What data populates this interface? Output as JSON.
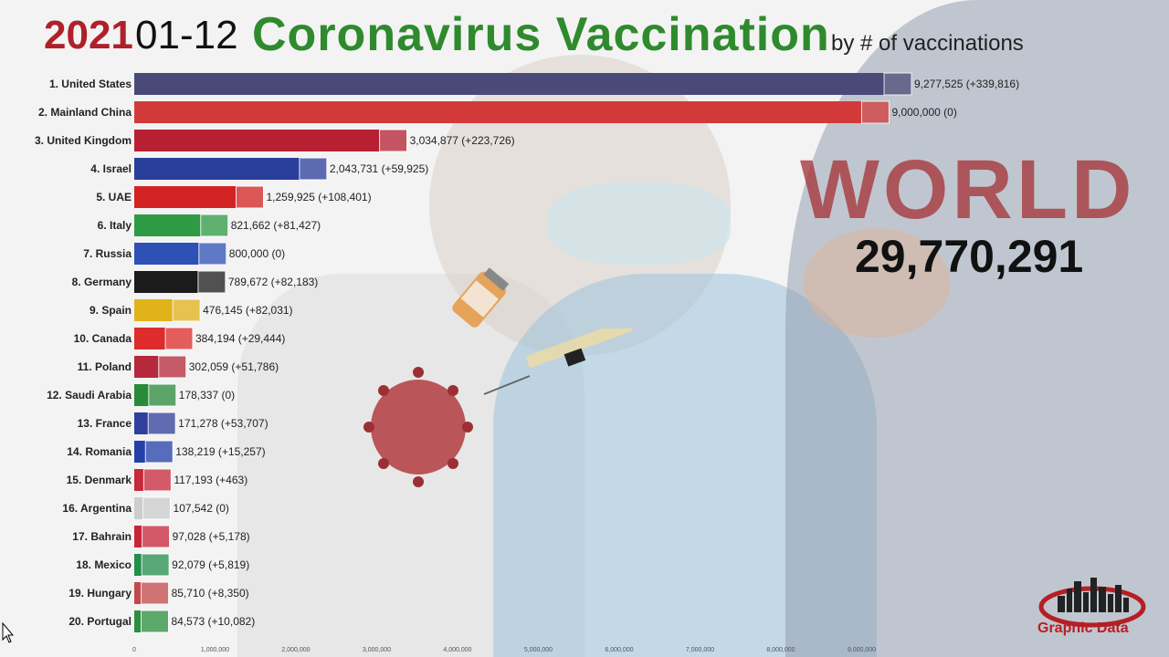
{
  "header": {
    "year": "2021",
    "date": "01-12",
    "title": "Coronavirus Vaccination",
    "subtitle": "by # of vaccinations"
  },
  "world": {
    "label": "WORLD",
    "value": "29,770,291"
  },
  "brand": {
    "name": "Graphic Data"
  },
  "chart_data": {
    "type": "bar",
    "orientation": "horizontal",
    "categories": [
      "1. United States",
      "2. Mainland China",
      "3. United Kingdom",
      "4. Israel",
      "5. UAE",
      "6. Italy",
      "7. Russia",
      "8. Germany",
      "9. Spain",
      "10. Canada",
      "11. Poland",
      "12. Saudi Arabia",
      "13. France",
      "14. Romania",
      "15. Denmark",
      "16. Argentina",
      "17. Bahrain",
      "18. Mexico",
      "19. Hungary",
      "20. Portugal"
    ],
    "values": [
      9277525,
      9000000,
      3034877,
      2043731,
      1259925,
      821662,
      800000,
      789672,
      476145,
      384194,
      302059,
      178337,
      171278,
      138219,
      117193,
      107542,
      97028,
      92079,
      85710,
      84573
    ],
    "value_labels": [
      "9,277,525 (+339,816)",
      "9,000,000 (0)",
      "3,034,877 (+223,726)",
      "2,043,731 (+59,925)",
      "1,259,925 (+108,401)",
      "821,662 (+81,427)",
      "800,000 (0)",
      "789,672 (+82,183)",
      "476,145 (+82,031)",
      "384,194 (+29,444)",
      "302,059 (+51,786)",
      "178,337 (0)",
      "171,278 (+53,707)",
      "138,219 (+15,257)",
      "117,193 (+463)",
      "107,542 (0)",
      "97,028 (+5,178)",
      "92,079 (+5,819)",
      "85,710 (+8,350)",
      "84,573 (+10,082)"
    ],
    "colors": [
      "#4a4a78",
      "#d23a3a",
      "#b62032",
      "#2a3e9c",
      "#d32424",
      "#2f9a44",
      "#2e51b8",
      "#1b1b1b",
      "#e2b21a",
      "#de2b2b",
      "#b6283c",
      "#2b8a3a",
      "#2f3f9a",
      "#2340a8",
      "#c7283c",
      "#cdcdcd",
      "#c8253a",
      "#238f4a",
      "#c4494c",
      "#2c8f3e"
    ],
    "x_ticks": [
      "0",
      "1,000,000",
      "2,000,000",
      "3,000,000",
      "4,000,000",
      "5,000,000",
      "6,000,000",
      "7,000,000",
      "8,000,000",
      "9,000,000"
    ],
    "x_max": 9277525
  }
}
